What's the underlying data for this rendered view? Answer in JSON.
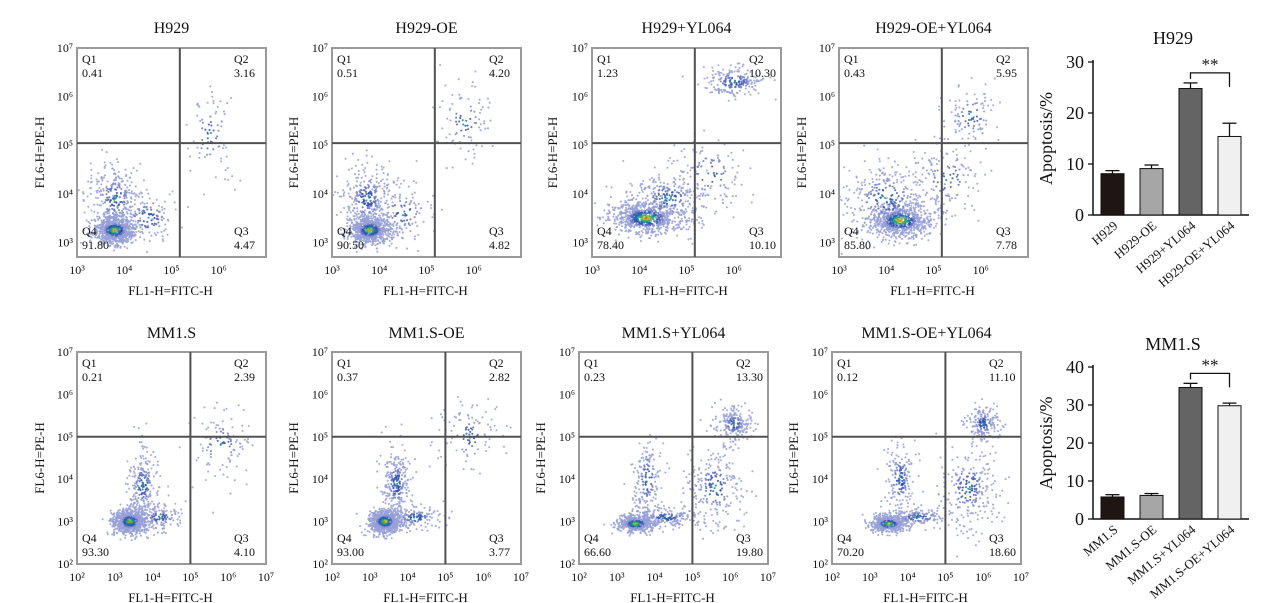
{
  "chart_data": [
    {
      "type": "scatter",
      "title": "H929",
      "xlabel": "FL1-H=FITC-H",
      "ylabel": "FL6-H=PE-H",
      "x_scale": "log",
      "y_scale": "log",
      "xlim": [
        1000,
        10000000
      ],
      "ylim": [
        500,
        10000000
      ],
      "x_ticks": [
        "10³",
        "10⁴",
        "10⁵",
        "10⁶"
      ],
      "y_ticks": [
        "10³",
        "10⁴",
        "10⁵",
        "10⁶",
        "10⁷"
      ],
      "gate": {
        "x": 150000,
        "y": 110000
      },
      "quadrants": [
        {
          "name": "Q1",
          "value": "0.41"
        },
        {
          "name": "Q2",
          "value": "3.16"
        },
        {
          "name": "Q3",
          "value": "4.47"
        },
        {
          "name": "Q4",
          "value": "91.80"
        }
      ]
    },
    {
      "type": "scatter",
      "title": "H929-OE",
      "xlabel": "FL1-H=FITC-H",
      "ylabel": "FL6-H=PE-H",
      "x_scale": "log",
      "y_scale": "log",
      "xlim": [
        1000,
        10000000
      ],
      "ylim": [
        500,
        10000000
      ],
      "x_ticks": [
        "10³",
        "10⁴",
        "10⁵",
        "10⁶"
      ],
      "y_ticks": [
        "10³",
        "10⁴",
        "10⁵",
        "10⁶",
        "10⁷"
      ],
      "gate": {
        "x": 150000,
        "y": 110000
      },
      "quadrants": [
        {
          "name": "Q1",
          "value": "0.51"
        },
        {
          "name": "Q2",
          "value": "4.20"
        },
        {
          "name": "Q3",
          "value": "4.82"
        },
        {
          "name": "Q4",
          "value": "90.50"
        }
      ]
    },
    {
      "type": "scatter",
      "title": "H929+YL064",
      "xlabel": "FL1-H=FITC-H",
      "ylabel": "FL6-H=PE-H",
      "x_scale": "log",
      "y_scale": "log",
      "xlim": [
        1000,
        10000000
      ],
      "ylim": [
        500,
        10000000
      ],
      "x_ticks": [
        "10³",
        "10⁴",
        "10⁵",
        "10⁶"
      ],
      "y_ticks": [
        "10³",
        "10⁴",
        "10⁵",
        "10⁶",
        "10⁷"
      ],
      "gate": {
        "x": 150000,
        "y": 110000
      },
      "quadrants": [
        {
          "name": "Q1",
          "value": "1.23"
        },
        {
          "name": "Q2",
          "value": "10.30"
        },
        {
          "name": "Q3",
          "value": "10.10"
        },
        {
          "name": "Q4",
          "value": "78.40"
        }
      ]
    },
    {
      "type": "scatter",
      "title": "H929-OE+YL064",
      "xlabel": "FL1-H=FITC-H",
      "ylabel": "FL6-H=PE-H",
      "x_scale": "log",
      "y_scale": "log",
      "xlim": [
        1000,
        10000000
      ],
      "ylim": [
        500,
        10000000
      ],
      "x_ticks": [
        "10³",
        "10⁴",
        "10⁵",
        "10⁶"
      ],
      "y_ticks": [
        "10³",
        "10⁴",
        "10⁵",
        "10⁶",
        "10⁷"
      ],
      "gate": {
        "x": 150000,
        "y": 110000
      },
      "quadrants": [
        {
          "name": "Q1",
          "value": "0.43"
        },
        {
          "name": "Q2",
          "value": "5.95"
        },
        {
          "name": "Q3",
          "value": "7.78"
        },
        {
          "name": "Q4",
          "value": "85.80"
        }
      ]
    },
    {
      "type": "bar",
      "title": "H929",
      "ylabel": "Apoptosis/%",
      "categories": [
        "H929",
        "H929-OE",
        "H929+YL064",
        "H929-OE+YL064"
      ],
      "values": [
        8.1,
        9.1,
        24.8,
        15.4
      ],
      "errors": [
        0.6,
        0.7,
        1.1,
        2.6
      ],
      "ylim": [
        0,
        30
      ],
      "y_ticks": [
        "0",
        "10",
        "20",
        "30"
      ],
      "colors": [
        "#1e1514",
        "#a6a6a6",
        "#646464",
        "#f0f0f0"
      ],
      "significance": {
        "between": [
          "H929+YL064",
          "H929-OE+YL064"
        ],
        "label": "**"
      }
    },
    {
      "type": "scatter",
      "title": "MM1.S",
      "xlabel": "FL1-H=FITC-H",
      "ylabel": "FL6-H=PE-H",
      "x_scale": "log",
      "y_scale": "log",
      "xlim": [
        100,
        10000000
      ],
      "ylim": [
        100,
        10000000
      ],
      "x_ticks": [
        "10²",
        "10³",
        "10⁴",
        "10⁵",
        "10⁶",
        "10⁷"
      ],
      "y_ticks": [
        "10²",
        "10³",
        "10⁴",
        "10⁵",
        "10⁶",
        "10⁷"
      ],
      "gate": {
        "x": 100000,
        "y": 100000
      },
      "quadrants": [
        {
          "name": "Q1",
          "value": "0.21"
        },
        {
          "name": "Q2",
          "value": "2.39"
        },
        {
          "name": "Q3",
          "value": "4.10"
        },
        {
          "name": "Q4",
          "value": "93.30"
        }
      ]
    },
    {
      "type": "scatter",
      "title": "MM1.S-OE",
      "xlabel": "FL1-H=FITC-H",
      "ylabel": "FL6-H=PE-H",
      "x_scale": "log",
      "y_scale": "log",
      "xlim": [
        100,
        10000000
      ],
      "ylim": [
        100,
        10000000
      ],
      "x_ticks": [
        "10²",
        "10³",
        "10⁴",
        "10⁵",
        "10⁶",
        "10⁷"
      ],
      "y_ticks": [
        "10²",
        "10³",
        "10⁴",
        "10⁵",
        "10⁶",
        "10⁷"
      ],
      "gate": {
        "x": 100000,
        "y": 100000
      },
      "quadrants": [
        {
          "name": "Q1",
          "value": "0.37"
        },
        {
          "name": "Q2",
          "value": "2.82"
        },
        {
          "name": "Q3",
          "value": "3.77"
        },
        {
          "name": "Q4",
          "value": "93.00"
        }
      ]
    },
    {
      "type": "scatter",
      "title": "MM1.S+YL064",
      "xlabel": "FL1-H=FITC-H",
      "ylabel": "FL6-H=PE-H",
      "x_scale": "log",
      "y_scale": "log",
      "xlim": [
        100,
        10000000
      ],
      "ylim": [
        100,
        10000000
      ],
      "x_ticks": [
        "10²",
        "10³",
        "10⁴",
        "10⁵",
        "10⁶",
        "10⁷"
      ],
      "y_ticks": [
        "10²",
        "10³",
        "10⁴",
        "10⁵",
        "10⁶",
        "10⁷"
      ],
      "gate": {
        "x": 100000,
        "y": 100000
      },
      "quadrants": [
        {
          "name": "Q1",
          "value": "0.23"
        },
        {
          "name": "Q2",
          "value": "13.30"
        },
        {
          "name": "Q3",
          "value": "19.80"
        },
        {
          "name": "Q4",
          "value": "66.60"
        }
      ]
    },
    {
      "type": "scatter",
      "title": "MM1.S-OE+YL064",
      "xlabel": "FL1-H=FITC-H",
      "ylabel": "FL6-H=PE-H",
      "x_scale": "log",
      "y_scale": "log",
      "xlim": [
        100,
        10000000
      ],
      "ylim": [
        100,
        10000000
      ],
      "x_ticks": [
        "10²",
        "10³",
        "10⁴",
        "10⁵",
        "10⁶",
        "10⁷"
      ],
      "y_ticks": [
        "10²",
        "10³",
        "10⁴",
        "10⁵",
        "10⁶",
        "10⁷"
      ],
      "gate": {
        "x": 100000,
        "y": 100000
      },
      "quadrants": [
        {
          "name": "Q1",
          "value": "0.12"
        },
        {
          "name": "Q2",
          "value": "11.10"
        },
        {
          "name": "Q3",
          "value": "18.60"
        },
        {
          "name": "Q4",
          "value": "70.20"
        }
      ]
    },
    {
      "type": "bar",
      "title": "MM1.S",
      "ylabel": "Apoptosis/%",
      "categories": [
        "MM1.S",
        "MM1.S-OE",
        "MM1.S+YL064",
        "MM1.S-OE+YL064"
      ],
      "values": [
        5.8,
        6.2,
        34.6,
        29.8
      ],
      "errors": [
        0.6,
        0.5,
        1.1,
        0.7
      ],
      "ylim": [
        0,
        40
      ],
      "y_ticks": [
        "0",
        "10",
        "20",
        "30",
        "40"
      ],
      "colors": [
        "#1e1514",
        "#a6a6a6",
        "#646464",
        "#f0f0f0"
      ],
      "significance": {
        "between": [
          "MM1.S+YL064",
          "MM1.S-OE+YL064"
        ],
        "label": "**"
      }
    }
  ]
}
